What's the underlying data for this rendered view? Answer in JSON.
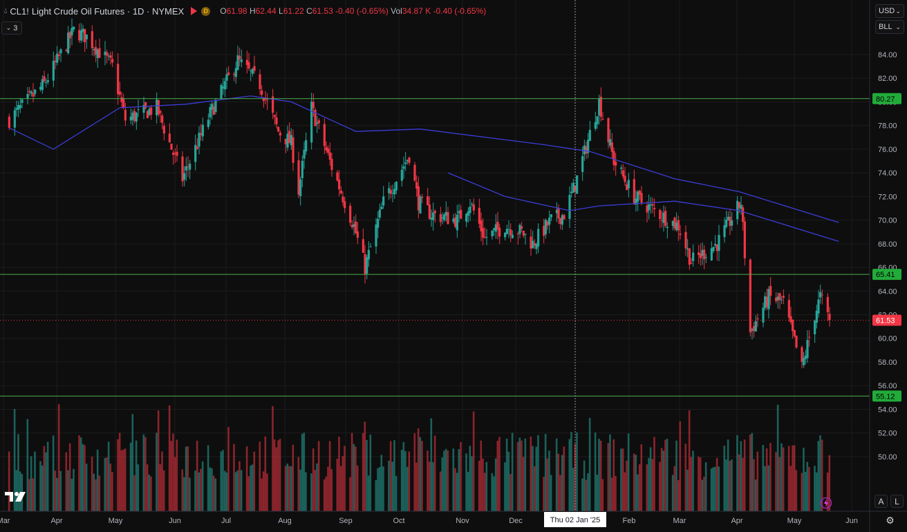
{
  "header": {
    "symbol": "CL1!",
    "title": "Light Crude Oil Futures · 1D · NYMEX",
    "d_badge": "D",
    "open_label": "O",
    "open": "61.98",
    "high_label": "H",
    "high": "62.44",
    "low_label": "L",
    "low": "61.22",
    "close_label": "C",
    "close": "61.53",
    "change": "-0.40 (-0.65%)",
    "vol_label": "Vol",
    "volume": "34.87 K",
    "vol_change": "-0.40 (-0.65%)",
    "indicator_count": "3"
  },
  "controls": {
    "currency": "USD",
    "unit": "BLL",
    "auto_label": "A",
    "log_label": "L"
  },
  "crosshair_date": "Thu 02 Jan '25",
  "colors": {
    "background": "#0e0e0e",
    "up": "#26a69a",
    "down": "#f23645",
    "ma": "#3d3ddb",
    "level_line": "#4caf50",
    "level_badge": "#22ab3a",
    "price_badge": "#f23645"
  },
  "chart_data": {
    "type": "candlestick",
    "symbol": "CL1!",
    "interval": "1D",
    "x_ticks": [
      "Mar",
      "Apr",
      "May",
      "Jun",
      "Jul",
      "Aug",
      "Sep",
      "Oct",
      "Nov",
      "Dec",
      "Feb",
      "Mar",
      "Apr",
      "May",
      "Jun"
    ],
    "y_ticks": [
      "50.00",
      "52.00",
      "54.00",
      "56.00",
      "58.00",
      "60.00",
      "62.00",
      "64.00",
      "66.00",
      "68.00",
      "70.00",
      "72.00",
      "74.00",
      "76.00",
      "78.00",
      "80.00",
      "82.00",
      "84.00"
    ],
    "ylim": [
      48.3,
      85.4
    ],
    "last_price": "61.53",
    "horizontal_levels": [
      "80.27",
      "65.41",
      "55.12"
    ],
    "overlay": "moving average (blue)",
    "volume_pane": true,
    "close_path": [
      {
        "date": "2024-03-01",
        "value": 78.5
      },
      {
        "date": "2024-03-20",
        "value": 81.5
      },
      {
        "date": "2024-04-05",
        "value": 86.0
      },
      {
        "date": "2024-04-12",
        "value": 85.5
      },
      {
        "date": "2024-04-26",
        "value": 83.0
      },
      {
        "date": "2024-05-03",
        "value": 78.5
      },
      {
        "date": "2024-05-20",
        "value": 79.5
      },
      {
        "date": "2024-06-03",
        "value": 73.5
      },
      {
        "date": "2024-06-18",
        "value": 79.0
      },
      {
        "date": "2024-07-03",
        "value": 83.5
      },
      {
        "date": "2024-07-15",
        "value": 81.5
      },
      {
        "date": "2024-07-25",
        "value": 77.5
      },
      {
        "date": "2024-08-01",
        "value": 76.5
      },
      {
        "date": "2024-08-05",
        "value": 72.5
      },
      {
        "date": "2024-08-12",
        "value": 79.5
      },
      {
        "date": "2024-08-23",
        "value": 74.5
      },
      {
        "date": "2024-09-04",
        "value": 69.5
      },
      {
        "date": "2024-09-10",
        "value": 66.0
      },
      {
        "date": "2024-09-20",
        "value": 71.5
      },
      {
        "date": "2024-10-04",
        "value": 75.5
      },
      {
        "date": "2024-10-09",
        "value": 71.5
      },
      {
        "date": "2024-10-16",
        "value": 70.5
      },
      {
        "date": "2024-10-30",
        "value": 70.0
      },
      {
        "date": "2024-11-06",
        "value": 71.5
      },
      {
        "date": "2024-11-14",
        "value": 68.5
      },
      {
        "date": "2024-11-25",
        "value": 69.5
      },
      {
        "date": "2024-12-04",
        "value": 69.0
      },
      {
        "date": "2024-12-10",
        "value": 68.0
      },
      {
        "date": "2024-12-20",
        "value": 70.0
      },
      {
        "date": "2024-12-27",
        "value": 70.5
      },
      {
        "date": "2025-01-02",
        "value": 73.0
      },
      {
        "date": "2025-01-15",
        "value": 80.0
      },
      {
        "date": "2025-01-23",
        "value": 75.0
      },
      {
        "date": "2025-02-03",
        "value": 72.0
      },
      {
        "date": "2025-02-12",
        "value": 71.0
      },
      {
        "date": "2025-02-27",
        "value": 69.5
      },
      {
        "date": "2025-03-06",
        "value": 66.5
      },
      {
        "date": "2025-03-20",
        "value": 68.0
      },
      {
        "date": "2025-04-02",
        "value": 71.5
      },
      {
        "date": "2025-04-07",
        "value": 60.5
      },
      {
        "date": "2025-04-17",
        "value": 63.5
      },
      {
        "date": "2025-04-25",
        "value": 63.0
      },
      {
        "date": "2025-05-05",
        "value": 57.5
      },
      {
        "date": "2025-05-12",
        "value": 62.0
      },
      {
        "date": "2025-05-15",
        "value": 63.5
      },
      {
        "date": "2025-05-20",
        "value": 61.53
      }
    ],
    "ma_path": [
      {
        "date": "2024-03-01",
        "value": 77.8
      },
      {
        "date": "2024-03-25",
        "value": 76.0
      },
      {
        "date": "2024-04-30",
        "value": 79.5
      },
      {
        "date": "2024-06-05",
        "value": 79.8
      },
      {
        "date": "2024-07-10",
        "value": 80.5
      },
      {
        "date": "2024-08-01",
        "value": 80.0
      },
      {
        "date": "2024-09-05",
        "value": 77.5
      },
      {
        "date": "2024-10-10",
        "value": 77.7
      },
      {
        "date": "2024-12-15",
        "value": 76.4
      },
      {
        "date": "2025-01-10",
        "value": 75.8
      },
      {
        "date": "2025-02-25",
        "value": 73.5
      },
      {
        "date": "2025-04-01",
        "value": 72.4
      },
      {
        "date": "2025-05-25",
        "value": 69.8
      }
    ],
    "ma2_path": [
      {
        "date": "2024-10-25",
        "value": 74.0
      },
      {
        "date": "2024-11-25",
        "value": 72.0
      },
      {
        "date": "2024-12-30",
        "value": 70.8
      },
      {
        "date": "2025-01-15",
        "value": 71.2
      },
      {
        "date": "2025-02-25",
        "value": 71.6
      },
      {
        "date": "2025-04-01",
        "value": 70.8
      },
      {
        "date": "2025-05-25",
        "value": 68.2
      }
    ]
  }
}
